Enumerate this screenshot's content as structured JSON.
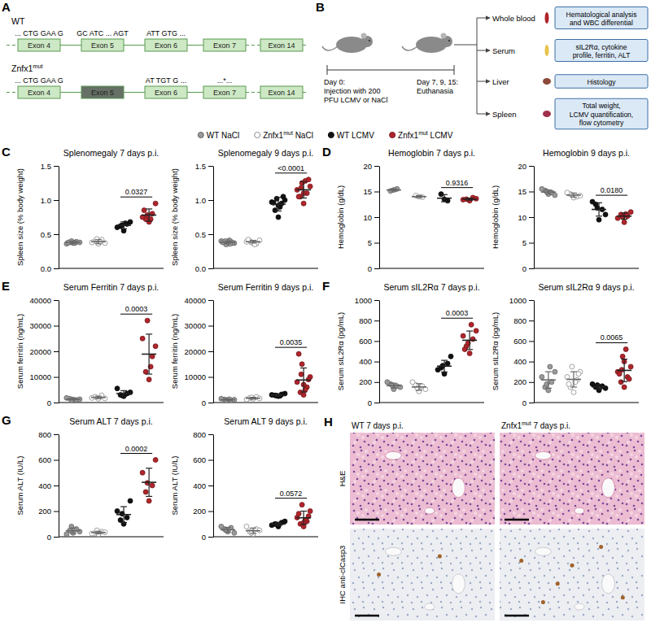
{
  "letters": [
    "A",
    "B",
    "C",
    "D",
    "E",
    "F",
    "G",
    "H"
  ],
  "gene_diagram": {
    "rows": [
      {
        "label": "WT",
        "exons": [
          {
            "label": "Exon 4",
            "codon": "... CTG GAA G"
          },
          {
            "label": "Exon 5",
            "codon": "GC ATC ... AGT"
          },
          {
            "label": "Exon 6",
            "codon": "ATT GTG ..."
          },
          {
            "label": "Exon 7"
          },
          {
            "label": "Exon 14"
          }
        ]
      },
      {
        "label": "Znfx1mut",
        "sup": "mut",
        "exons": [
          {
            "label": "Exon 4",
            "codon": "... CTG GAA G"
          },
          {
            "label": "Exon 5",
            "mutated": true
          },
          {
            "label": "Exon 6",
            "codon": "AT TGT G ..."
          },
          {
            "label": "Exon 7",
            "codon": "...*..."
          },
          {
            "label": "Exon 14"
          }
        ]
      }
    ]
  },
  "schematic": {
    "start": [
      "Day 0:",
      "Injection with 200",
      "PFU LCMV or NaCl"
    ],
    "end": [
      "Day 7, 9, 15:",
      "Euthanasia"
    ],
    "samples": [
      {
        "label": "Whole blood",
        "analysis": [
          "Hematological analysis",
          "and WBC differential"
        ]
      },
      {
        "label": "Serum",
        "analysis": [
          "sIL2Rα, cytokine",
          "profile, ferritin, ALT"
        ]
      },
      {
        "label": "Liver",
        "analysis": [
          "Histology"
        ]
      },
      {
        "label": "Spleen",
        "analysis": [
          "Total weight,",
          "LCMV quantification,",
          "flow cytometry"
        ]
      }
    ]
  },
  "groups": [
    {
      "name": "WT NaCl",
      "color": "#9a9a9a",
      "marker": "filled"
    },
    {
      "name": "Znfx1mut NaCl",
      "sup": "mut",
      "color": "#8c8c8c",
      "marker": "open"
    },
    {
      "name": "WT LCMV",
      "color": "#111111",
      "marker": "filled"
    },
    {
      "name": "Znfx1mut LCMV",
      "sup": "mut",
      "color": "#b0252b",
      "marker": "filled"
    }
  ],
  "chart_data": [
    {
      "type": "scatter",
      "title": "Splenomegaly 7 days p.i.",
      "y_label": "Spleen size (% body weight)",
      "ylim": [
        0,
        1.5
      ],
      "yticks": [
        {
          "value": 0,
          "label": "0.0"
        },
        0.5,
        {
          "value": 1,
          "label": "1.0"
        },
        1.5
      ],
      "tick_labels": "y",
      "series": [
        {
          "values": [
            0.37,
            0.38,
            0.39,
            0.36,
            0.38,
            0.4,
            0.37,
            0.38
          ],
          "mean": 0.38,
          "error": 0.02
        },
        {
          "values": [
            0.36,
            0.4,
            0.42,
            0.38,
            0.37,
            0.43,
            0.39
          ],
          "mean": 0.39,
          "error": 0.03
        },
        {
          "values": [
            0.55,
            0.62,
            0.65,
            0.6,
            0.68,
            0.63,
            0.66
          ],
          "mean": 0.63,
          "error": 0.05
        },
        {
          "values": [
            0.68,
            0.72,
            0.8,
            0.75,
            0.95,
            0.78,
            0.72,
            0.85
          ],
          "mean": 0.78,
          "error": 0.09
        }
      ],
      "annotations": [
        {
          "text": "0.0327",
          "between": [
            2,
            3
          ]
        }
      ]
    },
    {
      "type": "scatter",
      "title": "Splenomegaly 9 days p.i.",
      "y_label": "Spleen size (% body weight)",
      "ylim": [
        0,
        1.5
      ],
      "yticks": [
        {
          "value": 0,
          "label": "0.0"
        },
        0.5,
        {
          "value": 1,
          "label": "1.0"
        },
        1.5
      ],
      "tick_labels": "y",
      "series": [
        {
          "values": [
            0.36,
            0.38,
            0.39,
            0.4,
            0.37,
            0.35,
            0.41,
            0.38,
            0.37,
            0.39,
            0.4,
            0.36
          ],
          "mean": 0.38,
          "error": 0.02
        },
        {
          "values": [
            0.37,
            0.4,
            0.36,
            0.39,
            0.41,
            0.38,
            0.35,
            0.42
          ],
          "mean": 0.39,
          "error": 0.02
        },
        {
          "values": [
            0.75,
            0.85,
            0.95,
            0.97,
            1.0,
            1.02,
            0.9,
            0.96,
            1.05,
            0.92
          ],
          "mean": 0.94,
          "error": 0.1
        },
        {
          "values": [
            0.95,
            1.05,
            1.1,
            1.15,
            1.2,
            1.25,
            1.28,
            1.05,
            1.3,
            1.1,
            1.18
          ],
          "mean": 1.15,
          "error": 0.12
        }
      ],
      "annotations": [
        {
          "text": "<0.0001",
          "between": [
            2,
            3
          ]
        }
      ]
    },
    {
      "type": "scatter",
      "title": "Hemoglobin 7 days p.i.",
      "y_label": "Hemoglobin (g/dL)",
      "ylim": [
        0,
        20
      ],
      "yticks": [
        0,
        5,
        10,
        15,
        20
      ],
      "tick_labels": "y",
      "series": [
        {
          "values": [
            15.3,
            15.1,
            15.5
          ],
          "mean": 15.3,
          "error": 0.2
        },
        {
          "values": [
            14.0,
            14.2,
            13.9
          ],
          "mean": 14.0,
          "error": 0.2
        },
        {
          "values": [
            13.5,
            14.5,
            13.2
          ],
          "mean": 13.7,
          "error": 0.7
        },
        {
          "values": [
            13.2,
            13.5,
            13.8,
            13.4,
            13.6
          ],
          "mean": 13.5,
          "error": 0.2
        }
      ],
      "annotations": [
        {
          "text": "0.9316",
          "between": [
            2,
            3
          ]
        }
      ]
    },
    {
      "type": "scatter",
      "title": "Hemoglobin 9 days p.i.",
      "y_label": "Hemoglobin (g/dL)",
      "ylim": [
        0,
        20
      ],
      "yticks": [
        0,
        5,
        10,
        15,
        20
      ],
      "tick_labels": "y",
      "series": [
        {
          "values": [
            14.5,
            15.2,
            14.8,
            15.5,
            14.3,
            15.0
          ],
          "mean": 14.9,
          "error": 0.4
        },
        {
          "values": [
            13.8,
            14.5,
            14.0,
            14.8,
            14.2
          ],
          "mean": 14.3,
          "error": 0.4
        },
        {
          "values": [
            9.5,
            12.5,
            11.5,
            13.0,
            10.5,
            11.8
          ],
          "mean": 11.5,
          "error": 1.3
        },
        {
          "values": [
            9.0,
            10.5,
            10.2,
            9.8,
            11.0,
            10.0,
            10.6
          ],
          "mean": 10.2,
          "error": 0.6
        }
      ],
      "annotations": [
        {
          "text": "0.0180",
          "between": [
            2,
            3
          ]
        }
      ]
    },
    {
      "type": "scatter",
      "title": "Serum Ferritin 7 days p.i.",
      "y_label": "Serum ferritin (ng/mL)",
      "ylim": [
        0,
        40000
      ],
      "yticks": [
        0,
        10000,
        20000,
        30000,
        40000
      ],
      "tick_labels": "y",
      "series": [
        {
          "values": [
            1200,
            1500,
            1000,
            1800,
            1300,
            900
          ],
          "mean": 1300,
          "error": 300
        },
        {
          "values": [
            1500,
            2200,
            2800,
            1800,
            1600
          ],
          "mean": 2000,
          "error": 500
        },
        {
          "values": [
            2500,
            3000,
            3500,
            5500,
            4000,
            2800
          ],
          "mean": 3550,
          "error": 1100
        },
        {
          "values": [
            9000,
            12000,
            18000,
            25000,
            22000,
            32000,
            14000
          ],
          "mean": 18900,
          "error": 7800
        }
      ],
      "annotations": [
        {
          "text": "0.0003",
          "between": [
            2,
            3
          ]
        }
      ]
    },
    {
      "type": "scatter",
      "title": "Serum Ferritin 9 days p.i.",
      "y_label": "Serum ferritin (ng/mL)",
      "ylim": [
        0,
        40000
      ],
      "yticks": [
        0,
        10000,
        20000,
        30000,
        40000
      ],
      "tick_labels": "y",
      "series": [
        {
          "values": [
            1000,
            1200,
            800,
            1500,
            1100,
            900,
            1300
          ],
          "mean": 1100,
          "error": 230
        },
        {
          "values": [
            1500,
            1800,
            2200,
            1200,
            1600,
            2000
          ],
          "mean": 1700,
          "error": 350
        },
        {
          "values": [
            2500,
            2800,
            3200,
            3000,
            3500,
            2700,
            2600
          ],
          "mean": 2900,
          "error": 350
        },
        {
          "values": [
            3000,
            4000,
            6000,
            8000,
            10000,
            15000,
            5000,
            19000,
            9000,
            7000,
            11000
          ],
          "mean": 8800,
          "error": 4700
        }
      ],
      "annotations": [
        {
          "text": "0.0035",
          "between": [
            2,
            3
          ]
        }
      ]
    },
    {
      "type": "scatter",
      "title": "Serum sIL2Rα 7 days p.i.",
      "y_label": "Serum sIL2Rα (pg/mL)",
      "ylim": [
        0,
        1000
      ],
      "yticks": [
        0,
        200,
        400,
        600,
        800,
        1000
      ],
      "tick_labels": "y",
      "series": [
        {
          "values": [
            130,
            180,
            160,
            200,
            150,
            170
          ],
          "mean": 165,
          "error": 24
        },
        {
          "values": [
            110,
            170,
            160,
            200,
            130,
            140
          ],
          "mean": 152,
          "error": 32
        },
        {
          "values": [
            280,
            340,
            380,
            320,
            450,
            360
          ],
          "mean": 355,
          "error": 57
        },
        {
          "values": [
            480,
            550,
            620,
            650,
            700,
            580,
            760,
            520
          ],
          "mean": 608,
          "error": 90
        }
      ],
      "annotations": [
        {
          "text": "0.0003",
          "between": [
            2,
            3
          ]
        }
      ]
    },
    {
      "type": "scatter",
      "title": "Serum sIL2Rα 9 days p.i.",
      "y_label": "Serum sIL2Rα (pg/mL)",
      "ylim": [
        0,
        1000
      ],
      "yticks": [
        0,
        200,
        400,
        600,
        800,
        1000
      ],
      "tick_labels": "y",
      "series": [
        {
          "values": [
            120,
            150,
            200,
            250,
            300,
            180,
            350
          ],
          "mean": 221,
          "error": 80
        },
        {
          "values": [
            100,
            150,
            220,
            250,
            300,
            350,
            200,
            180,
            280
          ],
          "mean": 226,
          "error": 75
        },
        {
          "values": [
            120,
            150,
            160,
            180,
            140,
            170
          ],
          "mean": 153,
          "error": 22
        },
        {
          "values": [
            150,
            200,
            250,
            300,
            350,
            450,
            520,
            280,
            230,
            400,
            320
          ],
          "mean": 314,
          "error": 110
        }
      ],
      "annotations": [
        {
          "text": "0.0065",
          "between": [
            2,
            3
          ]
        }
      ]
    },
    {
      "type": "scatter",
      "title": "Serum ALT 7 days p.i.",
      "y_label": "Serum ALT (IU/L)",
      "ylim": [
        0,
        800
      ],
      "yticks": [
        0,
        200,
        400,
        600,
        800
      ],
      "tick_labels": "y",
      "series": [
        {
          "values": [
            30,
            50,
            60,
            20,
            40,
            80
          ],
          "mean": 47,
          "error": 21
        },
        {
          "values": [
            20,
            30,
            40,
            25,
            35,
            50
          ],
          "mean": 33,
          "error": 10
        },
        {
          "values": [
            100,
            130,
            150,
            200,
            280,
            180
          ],
          "mean": 173,
          "error": 62
        },
        {
          "values": [
            280,
            350,
            400,
            500,
            600,
            420
          ],
          "mean": 425,
          "error": 110
        }
      ],
      "annotations": [
        {
          "text": "0.0002",
          "between": [
            2,
            3
          ]
        }
      ]
    },
    {
      "type": "scatter",
      "title": "Serum ALT 9 days p.i.",
      "y_label": "Serum ALT (IU/L)",
      "ylim": [
        0,
        800
      ],
      "yticks": [
        0,
        200,
        400,
        600,
        800
      ],
      "tick_labels": "y",
      "series": [
        {
          "values": [
            40,
            60,
            70,
            80,
            30,
            50
          ],
          "mean": 55,
          "error": 18
        },
        {
          "values": [
            20,
            40,
            60,
            80,
            50,
            30
          ],
          "mean": 47,
          "error": 21
        },
        {
          "values": [
            80,
            100,
            110,
            90,
            120,
            95
          ],
          "mean": 99,
          "error": 14
        },
        {
          "values": [
            80,
            100,
            120,
            150,
            200,
            250,
            130,
            180,
            160,
            110
          ],
          "mean": 148,
          "error": 52
        }
      ],
      "annotations": [
        {
          "text": "0.0572",
          "between": [
            2,
            3
          ]
        }
      ]
    }
  ],
  "histology": {
    "columns": [
      {
        "title": "WT 7 days p.i."
      },
      {
        "title": "Znfx1mut 7 days p.i.",
        "sup": "mut"
      }
    ],
    "rows": [
      "H&E",
      "IHC anti-clCasp3"
    ]
  }
}
